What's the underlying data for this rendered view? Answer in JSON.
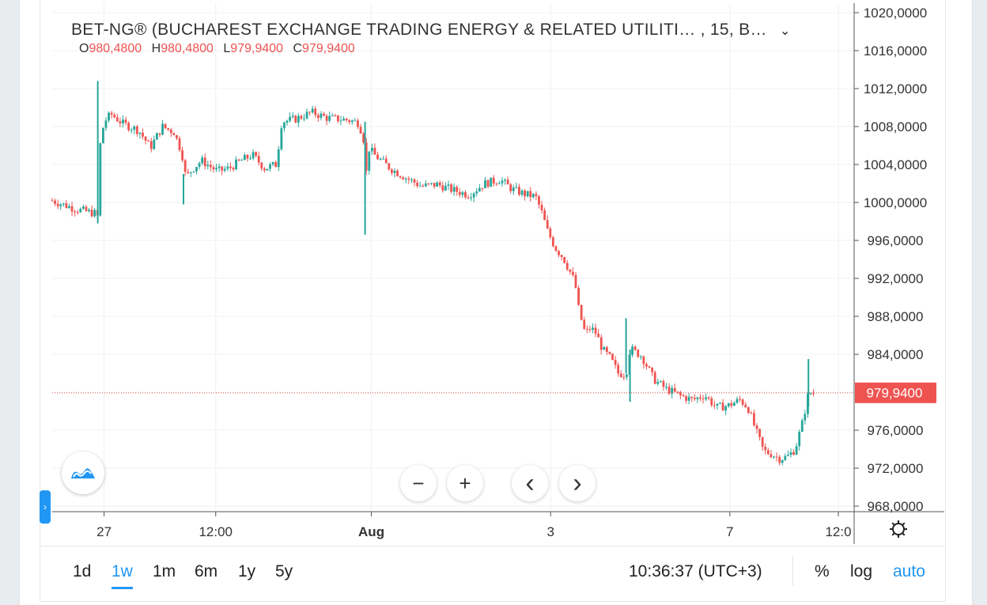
{
  "header": {
    "title": "BET-NG® (BUCHAREST EXCHANGE TRADING ENERGY & RELATED UTILITI… , 15, B…",
    "chevron": "⌄"
  },
  "ohlc": {
    "o_label": "O",
    "o_value": "980,4800",
    "h_label": "H",
    "h_value": "980,4800",
    "l_label": "L",
    "l_value": "979,9400",
    "c_label": "C",
    "c_value": "979,9400"
  },
  "colors": {
    "up": "#26a69a",
    "down": "#ef5350",
    "accent": "#2196f3",
    "grid": "#eef0f3"
  },
  "controls": {
    "zoom_out": "−",
    "zoom_in": "+",
    "scroll_left": "‹",
    "scroll_right": "›",
    "settings_icon": "gear-icon",
    "logo_icon": "tradingview-logo-icon",
    "side_tab": "›"
  },
  "timeframes": [
    "1d",
    "1w",
    "1m",
    "6m",
    "1y",
    "5y"
  ],
  "active_timeframe": "1w",
  "footer": {
    "clock": "10:36:37 (UTC+3)",
    "percent": "%",
    "log": "log",
    "auto": "auto"
  },
  "chart_data": {
    "type": "candlestick",
    "title": "BET-NG® (BUCHAREST EXCHANGE TRADING ENERGY & RELATED UTILITI… , 15, B…",
    "interval": "15",
    "current_price": 979.94,
    "current_price_label": "979,9400",
    "y_range": [
      967.5,
      1021
    ],
    "y_ticks": [
      968,
      972,
      976,
      980,
      984,
      988,
      992,
      996,
      1000,
      1004,
      1008,
      1012,
      1016,
      1020
    ],
    "y_tick_labels": [
      "968,0000",
      "972,0000",
      "976,0000",
      "984,0000",
      "988,0000",
      "992,0000",
      "996,0000",
      "1000,0000",
      "1004,0000",
      "1008,0000",
      "1012,0000",
      "1016,0000",
      "1020,0000"
    ],
    "y_tick_values": [
      968,
      972,
      976,
      984,
      988,
      992,
      996,
      1000,
      1004,
      1008,
      1012,
      1016,
      1020
    ],
    "x_ticks": [
      {
        "label": "27",
        "bold": false,
        "t": 0.066
      },
      {
        "label": "12:00",
        "bold": false,
        "t": 0.208
      },
      {
        "label": "Aug",
        "bold": true,
        "t": 0.406
      },
      {
        "label": "3",
        "bold": false,
        "t": 0.634
      },
      {
        "label": "7",
        "bold": false,
        "t": 0.862
      },
      {
        "label": "12:0",
        "bold": false,
        "t": 1.0
      }
    ],
    "price_path": [
      [
        0.0,
        1000.2
      ],
      [
        0.03,
        999.3
      ],
      [
        0.057,
        998.8
      ],
      [
        0.059,
        997.9
      ],
      [
        0.061,
        1006.0
      ],
      [
        0.066,
        1008.5
      ],
      [
        0.075,
        1009.3
      ],
      [
        0.09,
        1008.3
      ],
      [
        0.11,
        1007.6
      ],
      [
        0.125,
        1005.8
      ],
      [
        0.14,
        1008.0
      ],
      [
        0.155,
        1007.4
      ],
      [
        0.165,
        1005.2
      ],
      [
        0.17,
        1002.6
      ],
      [
        0.178,
        1003.5
      ],
      [
        0.19,
        1004.4
      ],
      [
        0.21,
        1003.3
      ],
      [
        0.225,
        1003.6
      ],
      [
        0.24,
        1004.4
      ],
      [
        0.255,
        1005.0
      ],
      [
        0.27,
        1003.6
      ],
      [
        0.285,
        1004.0
      ],
      [
        0.292,
        1008.5
      ],
      [
        0.31,
        1008.8
      ],
      [
        0.33,
        1009.5
      ],
      [
        0.35,
        1008.9
      ],
      [
        0.375,
        1008.7
      ],
      [
        0.39,
        1008.4
      ],
      [
        0.397,
        1006.4
      ],
      [
        0.399,
        999.0
      ],
      [
        0.4,
        1006.0
      ],
      [
        0.41,
        1005.0
      ],
      [
        0.43,
        1003.6
      ],
      [
        0.45,
        1002.6
      ],
      [
        0.47,
        1001.7
      ],
      [
        0.49,
        1001.9
      ],
      [
        0.51,
        1001.3
      ],
      [
        0.53,
        1000.8
      ],
      [
        0.55,
        1002.0
      ],
      [
        0.57,
        1002.4
      ],
      [
        0.585,
        1001.4
      ],
      [
        0.6,
        1000.9
      ],
      [
        0.615,
        1000.6
      ],
      [
        0.623,
        998.9
      ],
      [
        0.63,
        997.0
      ],
      [
        0.64,
        995.2
      ],
      [
        0.65,
        994.2
      ],
      [
        0.665,
        991.6
      ],
      [
        0.67,
        988.6
      ],
      [
        0.678,
        986.2
      ],
      [
        0.685,
        986.8
      ],
      [
        0.692,
        986.2
      ],
      [
        0.7,
        984.5
      ],
      [
        0.71,
        983.6
      ],
      [
        0.72,
        982.0
      ],
      [
        0.73,
        981.9
      ],
      [
        0.735,
        984.6
      ],
      [
        0.75,
        983.8
      ],
      [
        0.765,
        981.4
      ],
      [
        0.78,
        980.4
      ],
      [
        0.8,
        979.6
      ],
      [
        0.815,
        979.2
      ],
      [
        0.83,
        979.7
      ],
      [
        0.845,
        978.4
      ],
      [
        0.86,
        978.6
      ],
      [
        0.875,
        979.2
      ],
      [
        0.885,
        978.4
      ],
      [
        0.895,
        976.0
      ],
      [
        0.905,
        973.8
      ],
      [
        0.915,
        973.5
      ],
      [
        0.925,
        973.0
      ],
      [
        0.935,
        973.2
      ],
      [
        0.945,
        974.0
      ],
      [
        0.955,
        977.0
      ],
      [
        0.962,
        979.9
      ],
      [
        0.97,
        979.94
      ]
    ],
    "spikes": [
      {
        "t": 0.058,
        "low": 997.8,
        "high": 1012.8
      },
      {
        "t": 0.167,
        "low": 999.8,
        "high": 1003.0
      },
      {
        "t": 0.398,
        "low": 996.6,
        "high": 1008.5
      },
      {
        "t": 0.73,
        "low": 982.0,
        "high": 987.8
      },
      {
        "t": 0.735,
        "low": 979.0,
        "high": 984.5
      },
      {
        "t": 0.962,
        "low": 978.5,
        "high": 983.5
      }
    ]
  }
}
